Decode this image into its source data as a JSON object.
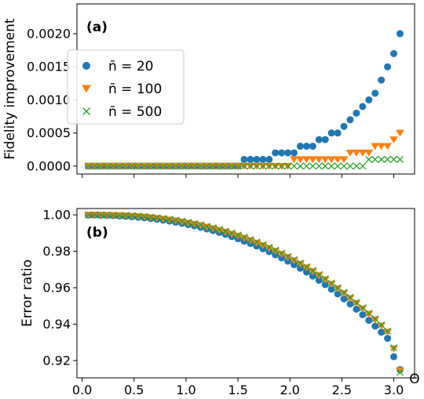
{
  "chart_data": [
    {
      "type": "scatter",
      "panel_label": "(a)",
      "ylabel": "Fidelity improvement",
      "xlabel": "",
      "xlim": [
        -0.05,
        3.2
      ],
      "ylim": [
        -0.00012,
        0.00245
      ],
      "x": [
        0.06,
        0.12,
        0.18,
        0.24,
        0.3,
        0.36,
        0.42,
        0.48,
        0.54,
        0.6,
        0.66,
        0.72,
        0.78,
        0.84,
        0.9,
        0.96,
        1.02,
        1.08,
        1.14,
        1.2,
        1.26,
        1.32,
        1.38,
        1.44,
        1.5,
        1.56,
        1.62,
        1.68,
        1.74,
        1.8,
        1.86,
        1.92,
        1.98,
        2.04,
        2.1,
        2.16,
        2.22,
        2.28,
        2.34,
        2.4,
        2.46,
        2.52,
        2.58,
        2.64,
        2.7,
        2.76,
        2.82,
        2.88,
        2.94,
        3.0,
        3.06
      ],
      "xticks": [
        0.0,
        0.5,
        1.0,
        1.5,
        2.0,
        2.5,
        3.0
      ],
      "yticks": [
        {
          "v": 0.0,
          "label": "0.0000"
        },
        {
          "v": 0.0005,
          "label": "0.0005"
        },
        {
          "v": 0.001,
          "label": "0.0010"
        },
        {
          "v": 0.0015,
          "label": "0.0015"
        },
        {
          "v": 0.002,
          "label": "0.0020"
        }
      ],
      "legend_position": "center-left",
      "series": [
        {
          "name": "n̄ = 20",
          "marker": "circle",
          "color": "#1f77b4",
          "values": [
            0.0,
            0.0,
            0.0,
            0.0,
            0.0,
            0.0,
            0.0,
            0.0,
            0.0,
            0.0,
            0.0,
            0.0,
            0.0,
            0.0,
            0.0,
            0.0,
            0.0,
            0.0,
            0.0,
            0.0,
            0.0,
            0.0,
            0.0,
            0.0,
            0.0,
            0.0001,
            0.0001,
            0.0001,
            0.0001,
            0.0001,
            0.0002,
            0.0002,
            0.0002,
            0.0002,
            0.0003,
            0.0003,
            0.0003,
            0.0004,
            0.0004,
            0.0005,
            0.0005,
            0.0006,
            0.0007,
            0.0008,
            0.0009,
            0.001,
            0.0011,
            0.0013,
            0.0015,
            0.0017,
            0.002
          ]
        },
        {
          "name": "n̄ = 100",
          "marker": "triangle-down",
          "color": "#ff7f0e",
          "values": [
            0.0,
            0.0,
            0.0,
            0.0,
            0.0,
            0.0,
            0.0,
            0.0,
            0.0,
            0.0,
            0.0,
            0.0,
            0.0,
            0.0,
            0.0,
            0.0,
            0.0,
            0.0,
            0.0,
            0.0,
            0.0,
            0.0,
            0.0,
            0.0,
            0.0,
            0.0,
            0.0,
            0.0,
            0.0,
            0.0,
            0.0,
            0.0,
            0.0,
            0.0001,
            0.0001,
            0.0001,
            0.0001,
            0.0001,
            0.0001,
            0.0001,
            0.0001,
            0.0001,
            0.0002,
            0.0002,
            0.0002,
            0.0002,
            0.0003,
            0.0003,
            0.0003,
            0.0004,
            0.0005
          ]
        },
        {
          "name": "n̄ = 500",
          "marker": "x",
          "color": "#2ca02c",
          "values": [
            0.0,
            0.0,
            0.0,
            0.0,
            0.0,
            0.0,
            0.0,
            0.0,
            0.0,
            0.0,
            0.0,
            0.0,
            0.0,
            0.0,
            0.0,
            0.0,
            0.0,
            0.0,
            0.0,
            0.0,
            0.0,
            0.0,
            0.0,
            0.0,
            0.0,
            0.0,
            0.0,
            0.0,
            0.0,
            0.0,
            0.0,
            0.0,
            0.0,
            0.0,
            0.0,
            0.0,
            0.0,
            0.0,
            0.0,
            0.0,
            0.0,
            0.0,
            0.0,
            0.0,
            0.0,
            0.0001,
            0.0001,
            0.0001,
            0.0001,
            0.0001,
            0.0001
          ]
        }
      ]
    },
    {
      "type": "scatter",
      "panel_label": "(b)",
      "ylabel": "Error ratio",
      "xlabel": "Θ",
      "xlim": [
        -0.05,
        3.2
      ],
      "ylim": [
        0.9105,
        1.0035
      ],
      "x": [
        0.06,
        0.12,
        0.18,
        0.24,
        0.3,
        0.36,
        0.42,
        0.48,
        0.54,
        0.6,
        0.66,
        0.72,
        0.78,
        0.84,
        0.9,
        0.96,
        1.02,
        1.08,
        1.14,
        1.2,
        1.26,
        1.32,
        1.38,
        1.44,
        1.5,
        1.56,
        1.62,
        1.68,
        1.74,
        1.8,
        1.86,
        1.92,
        1.98,
        2.04,
        2.1,
        2.16,
        2.22,
        2.28,
        2.34,
        2.4,
        2.46,
        2.52,
        2.58,
        2.64,
        2.7,
        2.76,
        2.82,
        2.88,
        2.94,
        3.0,
        3.06
      ],
      "xticks": [
        0.0,
        0.5,
        1.0,
        1.5,
        2.0,
        2.5,
        3.0
      ],
      "xtick_labels": [
        "0.0",
        "0.5",
        "1.0",
        "1.5",
        "2.0",
        "2.5",
        "3.0"
      ],
      "yticks": [
        {
          "v": 0.92,
          "label": "0.92"
        },
        {
          "v": 0.94,
          "label": "0.94"
        },
        {
          "v": 0.96,
          "label": "0.96"
        },
        {
          "v": 0.98,
          "label": "0.98"
        },
        {
          "v": 1.0,
          "label": "1.00"
        }
      ],
      "series": [
        {
          "name": "n̄ = 20",
          "marker": "circle",
          "color": "#1f77b4",
          "values": [
            0.9999,
            0.9999,
            0.9998,
            0.9997,
            0.9996,
            0.9994,
            0.9992,
            0.999,
            0.9987,
            0.9984,
            0.998,
            0.9976,
            0.9971,
            0.9966,
            0.996,
            0.9954,
            0.9947,
            0.994,
            0.9932,
            0.9923,
            0.9914,
            0.9904,
            0.9893,
            0.9881,
            0.9869,
            0.9856,
            0.9843,
            0.9829,
            0.9814,
            0.9798,
            0.9781,
            0.9764,
            0.9746,
            0.9727,
            0.9707,
            0.9686,
            0.9664,
            0.9641,
            0.9617,
            0.9592,
            0.9566,
            0.9539,
            0.9511,
            0.9482,
            0.9452,
            0.9421,
            0.9389,
            0.9356,
            0.9322,
            0.9221,
            0.915
          ]
        },
        {
          "name": "n̄ = 100",
          "marker": "triangle-down",
          "color": "#ff7f0e",
          "values": [
            1.0,
            1.0,
            0.9999,
            0.9999,
            0.9998,
            0.9997,
            0.9996,
            0.9994,
            0.9992,
            0.9989,
            0.9986,
            0.9982,
            0.9978,
            0.9973,
            0.9968,
            0.9962,
            0.9956,
            0.9949,
            0.9942,
            0.9934,
            0.9925,
            0.9916,
            0.9906,
            0.9895,
            0.9884,
            0.9872,
            0.9859,
            0.9846,
            0.9832,
            0.9817,
            0.9801,
            0.9784,
            0.9767,
            0.9749,
            0.973,
            0.971,
            0.9689,
            0.9667,
            0.9644,
            0.962,
            0.9595,
            0.9569,
            0.9542,
            0.9514,
            0.9485,
            0.9455,
            0.9424,
            0.9391,
            0.9357,
            0.9265,
            0.9145
          ]
        },
        {
          "name": "n̄ = 500",
          "marker": "x",
          "color": "#2ca02c",
          "values": [
            1.0,
            1.0,
            1.0,
            0.9999,
            0.9998,
            0.9997,
            0.9996,
            0.9995,
            0.9993,
            0.999,
            0.9987,
            0.9984,
            0.998,
            0.9975,
            0.997,
            0.9965,
            0.9959,
            0.9952,
            0.9945,
            0.9937,
            0.9929,
            0.992,
            0.991,
            0.99,
            0.9889,
            0.9877,
            0.9864,
            0.9851,
            0.9837,
            0.9822,
            0.9806,
            0.9789,
            0.9772,
            0.9754,
            0.9735,
            0.9715,
            0.9694,
            0.9672,
            0.9649,
            0.9625,
            0.96,
            0.9574,
            0.9547,
            0.9519,
            0.949,
            0.946,
            0.9429,
            0.9396,
            0.9361,
            0.927,
            0.9135
          ]
        }
      ]
    }
  ]
}
